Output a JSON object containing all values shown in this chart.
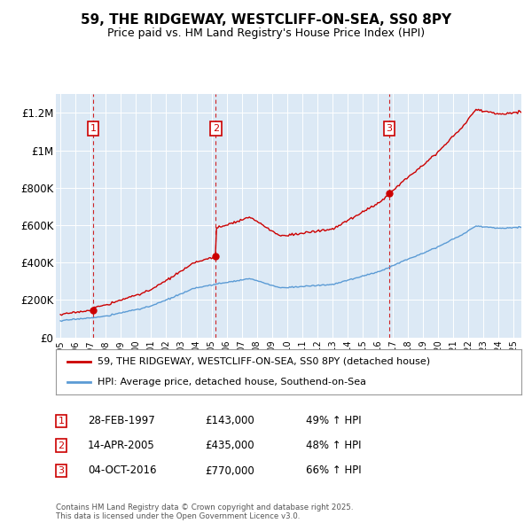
{
  "title": "59, THE RIDGEWAY, WESTCLIFF-ON-SEA, SS0 8PY",
  "subtitle": "Price paid vs. HM Land Registry's House Price Index (HPI)",
  "bg_color": "#dce9f5",
  "grid_color": "#ffffff",
  "ylabel_values": [
    "£0",
    "£200K",
    "£400K",
    "£600K",
    "£800K",
    "£1M",
    "£1.2M"
  ],
  "ylim": [
    0,
    1300000
  ],
  "yticks": [
    0,
    200000,
    400000,
    600000,
    800000,
    1000000,
    1200000
  ],
  "sale_prices": [
    143000,
    435000,
    770000
  ],
  "sale_dates_float": [
    1997.154,
    2005.281,
    2016.756
  ],
  "sale_labels": [
    "1",
    "2",
    "3"
  ],
  "sale_label_color": "#cc0000",
  "red_line_color": "#cc0000",
  "blue_line_color": "#5b9bd5",
  "legend_red_label": "59, THE RIDGEWAY, WESTCLIFF-ON-SEA, SS0 8PY (detached house)",
  "legend_blue_label": "HPI: Average price, detached house, Southend-on-Sea",
  "table_entries": [
    {
      "num": "1",
      "date": "28-FEB-1997",
      "price": "£143,000",
      "hpi": "49% ↑ HPI"
    },
    {
      "num": "2",
      "date": "14-APR-2005",
      "price": "£435,000",
      "hpi": "48% ↑ HPI"
    },
    {
      "num": "3",
      "date": "04-OCT-2016",
      "price": "£770,000",
      "hpi": "66% ↑ HPI"
    }
  ],
  "footer": "Contains HM Land Registry data © Crown copyright and database right 2025.\nThis data is licensed under the Open Government Licence v3.0.",
  "xstart_year": 1995,
  "xend_year": 2025
}
